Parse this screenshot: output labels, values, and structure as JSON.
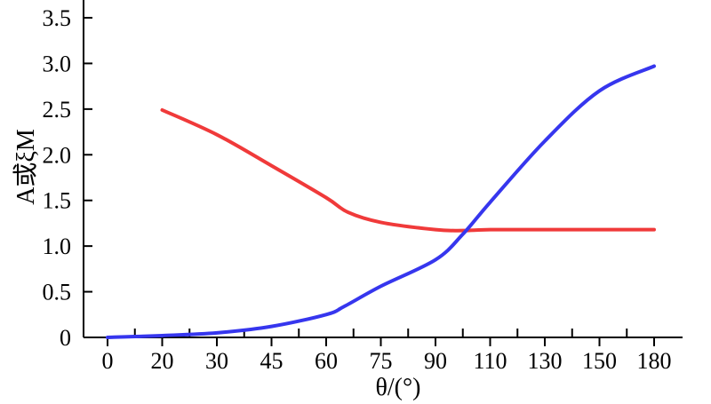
{
  "chart_data": {
    "type": "line",
    "title": "",
    "xlabel": "θ/(°)",
    "ylabel": "A或ξM",
    "x_tick_labels": [
      "0",
      "20",
      "30",
      "45",
      "60",
      "75",
      "90",
      "110",
      "130",
      "150",
      "180"
    ],
    "y_ticks": [
      0,
      0.5,
      1.0,
      1.5,
      2.0,
      2.5,
      3.0,
      3.5
    ],
    "y_tick_labels": [
      "0",
      "0.5",
      "1.0",
      "1.5",
      "2.0",
      "2.5",
      "3.0",
      "3.5"
    ],
    "ylim": [
      0,
      3.5
    ],
    "grid": false,
    "legend": "none",
    "series": [
      {
        "color": "#f03a3a",
        "points": [
          {
            "x": "20",
            "y": 2.49
          },
          {
            "x": "30",
            "y": 2.22
          },
          {
            "x": "45",
            "y": 1.88
          },
          {
            "x": "60",
            "y": 1.53
          },
          {
            "x": "66",
            "y": 1.37
          },
          {
            "x": "75",
            "y": 1.26
          },
          {
            "x": "90",
            "y": 1.18
          },
          {
            "x": "100",
            "y": 1.17
          },
          {
            "x": "110",
            "y": 1.18
          },
          {
            "x": "130",
            "y": 1.18
          },
          {
            "x": "150",
            "y": 1.18
          },
          {
            "x": "180",
            "y": 1.18
          }
        ]
      },
      {
        "color": "#3636ee",
        "points": [
          {
            "x": "0",
            "y": 0.0
          },
          {
            "x": "10",
            "y": 0.01
          },
          {
            "x": "20",
            "y": 0.02
          },
          {
            "x": "30",
            "y": 0.05
          },
          {
            "x": "45",
            "y": 0.12
          },
          {
            "x": "60",
            "y": 0.25
          },
          {
            "x": "65",
            "y": 0.34
          },
          {
            "x": "75",
            "y": 0.56
          },
          {
            "x": "90",
            "y": 0.85
          },
          {
            "x": "100",
            "y": 1.13
          },
          {
            "x": "110",
            "y": 1.48
          },
          {
            "x": "130",
            "y": 2.15
          },
          {
            "x": "150",
            "y": 2.7
          },
          {
            "x": "180",
            "y": 2.97
          }
        ]
      }
    ]
  }
}
